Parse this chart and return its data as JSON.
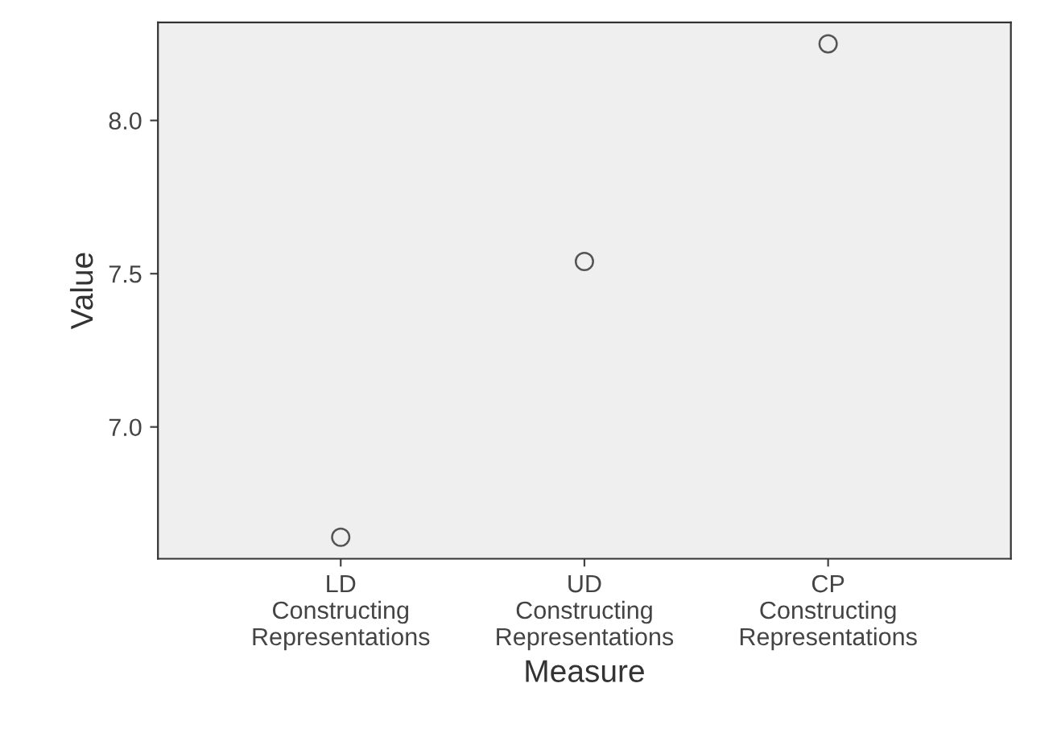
{
  "chart_data": {
    "type": "scatter",
    "xlabel": "Measure",
    "ylabel": "Value",
    "categories": [
      "LD Constructing Representations",
      "UD Constructing Representations",
      "CP Constructing Representations"
    ],
    "series": [
      {
        "color": "#555555",
        "values": [
          6.64,
          7.54,
          8.25
        ]
      }
    ],
    "ylim": [
      6.57,
      8.32
    ],
    "yticks": [
      {
        "value": 7.0,
        "label": "7.0"
      },
      {
        "value": 7.5,
        "label": "7.5"
      },
      {
        "value": 8.0,
        "label": "8.0"
      }
    ],
    "marker": "circle",
    "grid": false,
    "legend": false
  }
}
